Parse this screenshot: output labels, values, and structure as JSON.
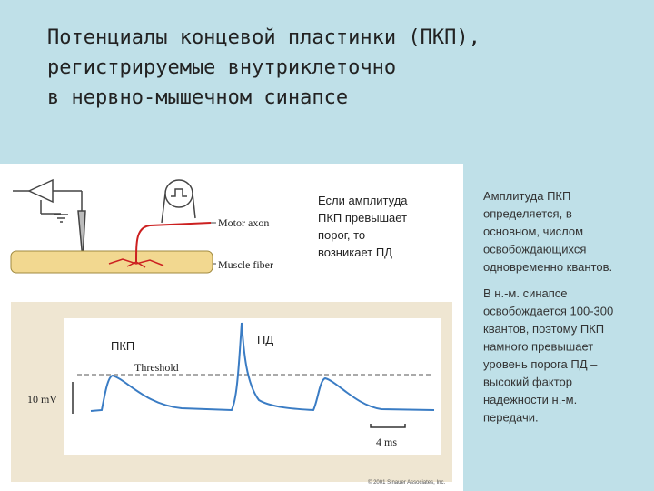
{
  "header": {
    "title": [
      "Потенциалы концевой пластинки (ПКП),",
      "регистрируемые внутриклеточно",
      "в нервно-мышечном синапсе"
    ]
  },
  "figure": {
    "motor_axon": "Motor axon",
    "muscle_fiber": "Muscle fiber",
    "threshold": "Threshold",
    "voltage_scale": "10 mV",
    "time_scale": "4 ms",
    "label_epp": "ПКП",
    "label_ap": "ПД",
    "copyright": "© 2001 Sinauer Associates, Inc.",
    "note": [
      "Если амплитуда",
      "ПКП превышает",
      "порог, то",
      "возникает ПД"
    ]
  },
  "side_text": {
    "paragraph_1": [
      "Амплитуда ПКП",
      "определяется, в",
      "основном, числом",
      "освобождающихся",
      "одновременно квантов."
    ],
    "paragraph_2": [
      "В н.-м. синапсе",
      "освобождается 100-300",
      "квантов, поэтому ПКП",
      "намного превышает",
      "уровень порога ПД –",
      "высокий фактор",
      "надежности н.-м.",
      "передачи."
    ]
  }
}
